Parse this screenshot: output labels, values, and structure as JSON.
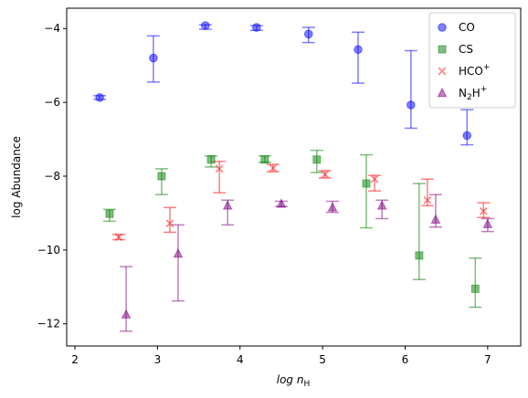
{
  "chart_data": {
    "type": "scatter",
    "xlabel": "log n",
    "xlabel_sub": "H",
    "ylabel": "log Abundance",
    "xlim": [
      1.9,
      7.4
    ],
    "ylim": [
      -12.6,
      -3.45
    ],
    "xticks": [
      2,
      3,
      4,
      5,
      6,
      7
    ],
    "yticks": [
      -12,
      -10,
      -8,
      -6,
      -4
    ],
    "xtick_labels": [
      "2",
      "3",
      "4",
      "5",
      "6",
      "7"
    ],
    "ytick_labels": [
      "−12",
      "−10",
      "−8",
      "−6",
      "−4"
    ],
    "grid": false,
    "legend_position": "top-right",
    "series": [
      {
        "name": "CO",
        "label_main": "CO",
        "label_sub": "",
        "label_sup": "",
        "marker": "circle",
        "color": "#0000ff",
        "points": [
          {
            "x": 2.3,
            "y": -5.87,
            "lo": -5.92,
            "hi": -5.82
          },
          {
            "x": 2.95,
            "y": -4.8,
            "lo": -5.45,
            "hi": -4.2
          },
          {
            "x": 3.58,
            "y": -3.92,
            "lo": -4.02,
            "hi": -3.9
          },
          {
            "x": 4.2,
            "y": -3.97,
            "lo": -4.05,
            "hi": -3.92
          },
          {
            "x": 4.83,
            "y": -4.15,
            "lo": -4.38,
            "hi": -3.97
          },
          {
            "x": 5.43,
            "y": -4.57,
            "lo": -5.48,
            "hi": -4.1
          },
          {
            "x": 6.07,
            "y": -6.07,
            "lo": -6.7,
            "hi": -4.6
          },
          {
            "x": 6.75,
            "y": -6.9,
            "lo": -7.15,
            "hi": -6.2
          }
        ]
      },
      {
        "name": "CS",
        "label_main": "CS",
        "label_sub": "",
        "label_sup": "",
        "marker": "square",
        "color": "#008000",
        "points": [
          {
            "x": 2.42,
            "y": -9.02,
            "lo": -9.22,
            "hi": -8.9
          },
          {
            "x": 3.05,
            "y": -8.0,
            "lo": -8.5,
            "hi": -7.8
          },
          {
            "x": 3.65,
            "y": -7.55,
            "lo": -7.75,
            "hi": -7.45
          },
          {
            "x": 4.3,
            "y": -7.55,
            "lo": -7.62,
            "hi": -7.45
          },
          {
            "x": 4.93,
            "y": -7.55,
            "lo": -7.9,
            "hi": -7.3
          },
          {
            "x": 5.53,
            "y": -8.2,
            "lo": -9.4,
            "hi": -7.42
          },
          {
            "x": 6.17,
            "y": -10.15,
            "lo": -10.8,
            "hi": -8.2
          },
          {
            "x": 6.85,
            "y": -11.05,
            "lo": -11.55,
            "hi": -10.22
          }
        ]
      },
      {
        "name": "HCO+",
        "label_main": "HCO",
        "label_sub": "",
        "label_sup": "+",
        "marker": "x",
        "color": "#ff0000",
        "points": [
          {
            "x": 2.53,
            "y": -9.65,
            "lo": -9.72,
            "hi": -9.58
          },
          {
            "x": 3.15,
            "y": -9.28,
            "lo": -9.52,
            "hi": -8.85
          },
          {
            "x": 3.75,
            "y": -7.8,
            "lo": -8.45,
            "hi": -7.6
          },
          {
            "x": 4.4,
            "y": -7.78,
            "lo": -7.88,
            "hi": -7.68
          },
          {
            "x": 5.03,
            "y": -7.95,
            "lo": -8.05,
            "hi": -7.85
          },
          {
            "x": 5.63,
            "y": -8.08,
            "lo": -8.4,
            "hi": -7.98
          },
          {
            "x": 6.27,
            "y": -8.65,
            "lo": -8.8,
            "hi": -8.08
          },
          {
            "x": 6.95,
            "y": -8.95,
            "lo": -9.12,
            "hi": -8.72
          }
        ]
      },
      {
        "name": "N2H+",
        "label_main": "N",
        "label_sub": "2",
        "label_sup": "+",
        "label_tail": "H",
        "marker": "triangle",
        "color": "#800080",
        "points": [
          {
            "x": 2.62,
            "y": -11.75,
            "lo": -12.2,
            "hi": -10.45
          },
          {
            "x": 3.25,
            "y": -10.1,
            "lo": -11.38,
            "hi": -9.32
          },
          {
            "x": 3.85,
            "y": -8.8,
            "lo": -9.32,
            "hi": -8.65
          },
          {
            "x": 4.5,
            "y": -8.75,
            "lo": -8.82,
            "hi": -8.68
          },
          {
            "x": 5.12,
            "y": -8.85,
            "lo": -8.98,
            "hi": -8.68
          },
          {
            "x": 5.72,
            "y": -8.8,
            "lo": -9.15,
            "hi": -8.65
          },
          {
            "x": 6.37,
            "y": -9.18,
            "lo": -9.38,
            "hi": -8.5
          },
          {
            "x": 7.0,
            "y": -9.3,
            "lo": -9.5,
            "hi": -9.15
          }
        ]
      }
    ]
  }
}
